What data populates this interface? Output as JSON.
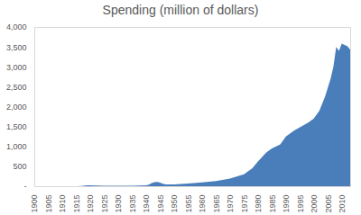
{
  "chart_data": {
    "type": "area",
    "title": "Spending (million of dollars)",
    "color": "#4a7ebb",
    "x": [
      1900,
      1905,
      1910,
      1915,
      1917,
      1918,
      1919,
      1920,
      1925,
      1930,
      1935,
      1940,
      1941,
      1942,
      1943,
      1944,
      1945,
      1946,
      1947,
      1950,
      1955,
      1960,
      1965,
      1970,
      1975,
      1978,
      1980,
      1983,
      1985,
      1988,
      1990,
      1993,
      1995,
      1998,
      2000,
      2002,
      2004,
      2006,
      2007,
      2008,
      2009,
      2010,
      2011,
      2012,
      2013
    ],
    "values": [
      0,
      0,
      0,
      2,
      5,
      15,
      25,
      20,
      12,
      10,
      12,
      20,
      40,
      80,
      100,
      110,
      90,
      60,
      45,
      45,
      65,
      95,
      130,
      190,
      300,
      450,
      620,
      850,
      950,
      1050,
      1250,
      1400,
      1480,
      1600,
      1700,
      1900,
      2250,
      2700,
      3000,
      3500,
      3400,
      3580,
      3550,
      3520,
      3430
    ],
    "xlim": [
      1900,
      2013
    ],
    "xticks": [
      1900,
      1905,
      1910,
      1915,
      1920,
      1925,
      1930,
      1935,
      1940,
      1945,
      1950,
      1955,
      1960,
      1965,
      1970,
      1975,
      1980,
      1985,
      1990,
      1995,
      2000,
      2005,
      2010
    ],
    "ylim": [
      0,
      4000
    ],
    "yticks": [
      {
        "value": 0,
        "label": "-"
      },
      500,
      {
        "value": 1000,
        "label": "1,000"
      },
      {
        "value": 1500,
        "label": "1,500"
      },
      {
        "value": 2000,
        "label": "2,000"
      },
      {
        "value": 2500,
        "label": "2,500"
      },
      {
        "value": 3000,
        "label": "3,000"
      },
      {
        "value": 3500,
        "label": "3,500"
      },
      {
        "value": 4000,
        "label": "4,000"
      }
    ],
    "grid": false
  }
}
